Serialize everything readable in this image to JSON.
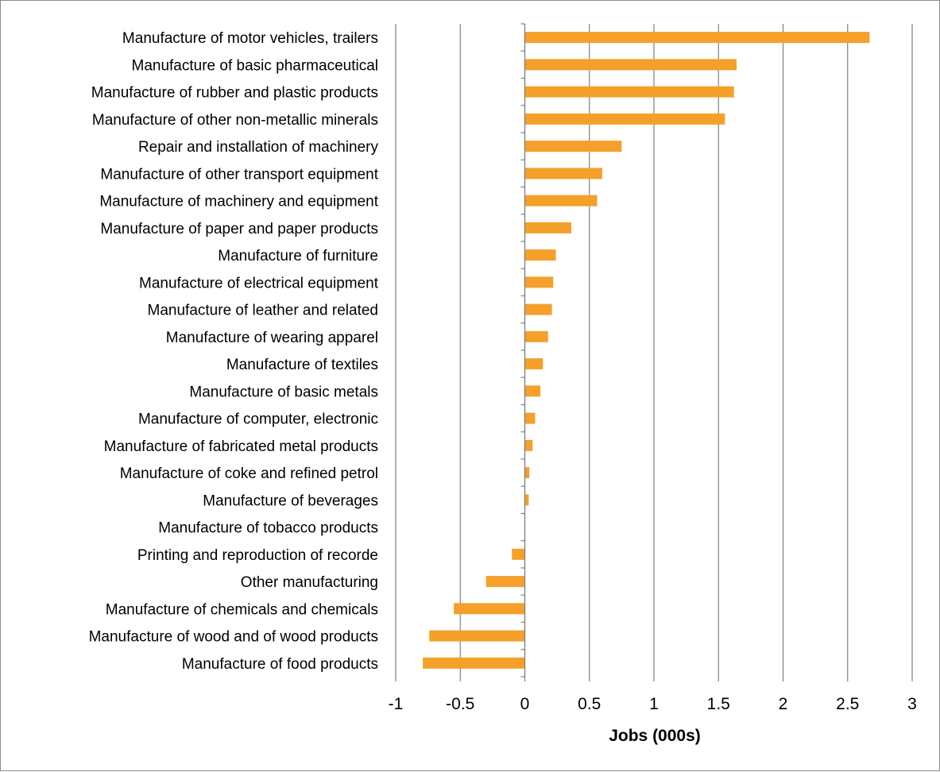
{
  "chart_data": {
    "type": "bar",
    "orientation": "horizontal",
    "categories": [
      "Manufacture of motor vehicles, trailers",
      "Manufacture of basic pharmaceutical",
      "Manufacture of rubber and plastic products",
      "Manufacture of other non-metallic minerals",
      "Repair and installation of machinery",
      "Manufacture of other transport equipment",
      "Manufacture of machinery and equipment",
      "Manufacture of paper and paper products",
      "Manufacture of furniture",
      "Manufacture of electrical equipment",
      "Manufacture of leather and related ",
      "Manufacture of wearing apparel",
      "Manufacture of textiles",
      "Manufacture of basic metals",
      "Manufacture of computer, electronic",
      "Manufacture of fabricated metal products",
      "Manufacture of coke and refined petrol",
      "Manufacture of beverages",
      "Manufacture of tobacco products",
      "Printing and reproduction of recorde",
      "Other manufacturing",
      "Manufacture of chemicals and chemicals",
      "Manufacture of wood and of wood products",
      "Manufacture of food products"
    ],
    "values": [
      2.67,
      1.64,
      1.62,
      1.55,
      0.75,
      0.6,
      0.56,
      0.36,
      0.24,
      0.22,
      0.21,
      0.18,
      0.14,
      0.12,
      0.08,
      0.06,
      0.035,
      0.03,
      0.0,
      -0.1,
      -0.3,
      -0.55,
      -0.74,
      -0.79
    ],
    "xlabel": "Jobs (000s)",
    "ylabel": "",
    "title": "",
    "xlim": [
      -1,
      3
    ],
    "xticks": [
      -1,
      -0.5,
      0,
      0.5,
      1,
      1.5,
      2,
      2.5,
      3
    ],
    "xtick_labels": [
      "-1",
      "-0.5",
      "0",
      "0.5",
      "1",
      "1.5",
      "2",
      "2.5",
      "3"
    ],
    "grid": "vertical",
    "legend": "none",
    "bar_color": "#F5A02A",
    "grid_color": "#808080"
  }
}
